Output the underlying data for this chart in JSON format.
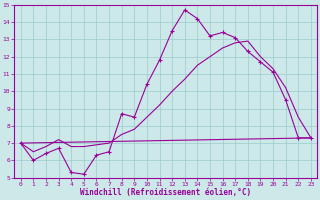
{
  "xlabel": "Windchill (Refroidissement éolien,°C)",
  "ylabel": "",
  "xlim": [
    -0.5,
    23.5
  ],
  "ylim": [
    5,
    15
  ],
  "xticks": [
    0,
    1,
    2,
    3,
    4,
    5,
    6,
    7,
    8,
    9,
    10,
    11,
    12,
    13,
    14,
    15,
    16,
    17,
    18,
    19,
    20,
    21,
    22,
    23
  ],
  "yticks": [
    5,
    6,
    7,
    8,
    9,
    10,
    11,
    12,
    13,
    14,
    15
  ],
  "bg_color": "#cce8e8",
  "line_color": "#990099",
  "grid_color": "#99cccc",
  "line1_x": [
    0,
    1,
    2,
    3,
    4,
    5,
    6,
    7,
    8,
    9,
    10,
    11,
    12,
    13,
    14,
    15,
    16,
    17,
    18,
    19,
    20,
    21,
    22,
    23
  ],
  "line1_y": [
    7.0,
    6.0,
    6.4,
    6.7,
    5.3,
    5.2,
    6.3,
    6.5,
    8.7,
    8.5,
    10.4,
    11.8,
    13.5,
    14.7,
    14.2,
    13.2,
    13.4,
    13.1,
    12.3,
    11.7,
    11.1,
    9.5,
    7.3,
    7.3
  ],
  "line2_x": [
    0,
    23
  ],
  "line2_y": [
    7.0,
    7.3
  ],
  "line3_x": [
    0,
    1,
    2,
    3,
    4,
    5,
    6,
    7,
    8,
    9,
    10,
    11,
    12,
    13,
    14,
    15,
    16,
    17,
    18,
    19,
    20,
    21,
    22,
    23
  ],
  "line3_y": [
    7.0,
    6.5,
    6.8,
    7.2,
    6.8,
    6.8,
    6.9,
    7.0,
    7.5,
    7.8,
    8.5,
    9.2,
    10.0,
    10.7,
    11.5,
    12.0,
    12.5,
    12.8,
    12.9,
    12.0,
    11.3,
    10.2,
    8.5,
    7.3
  ]
}
